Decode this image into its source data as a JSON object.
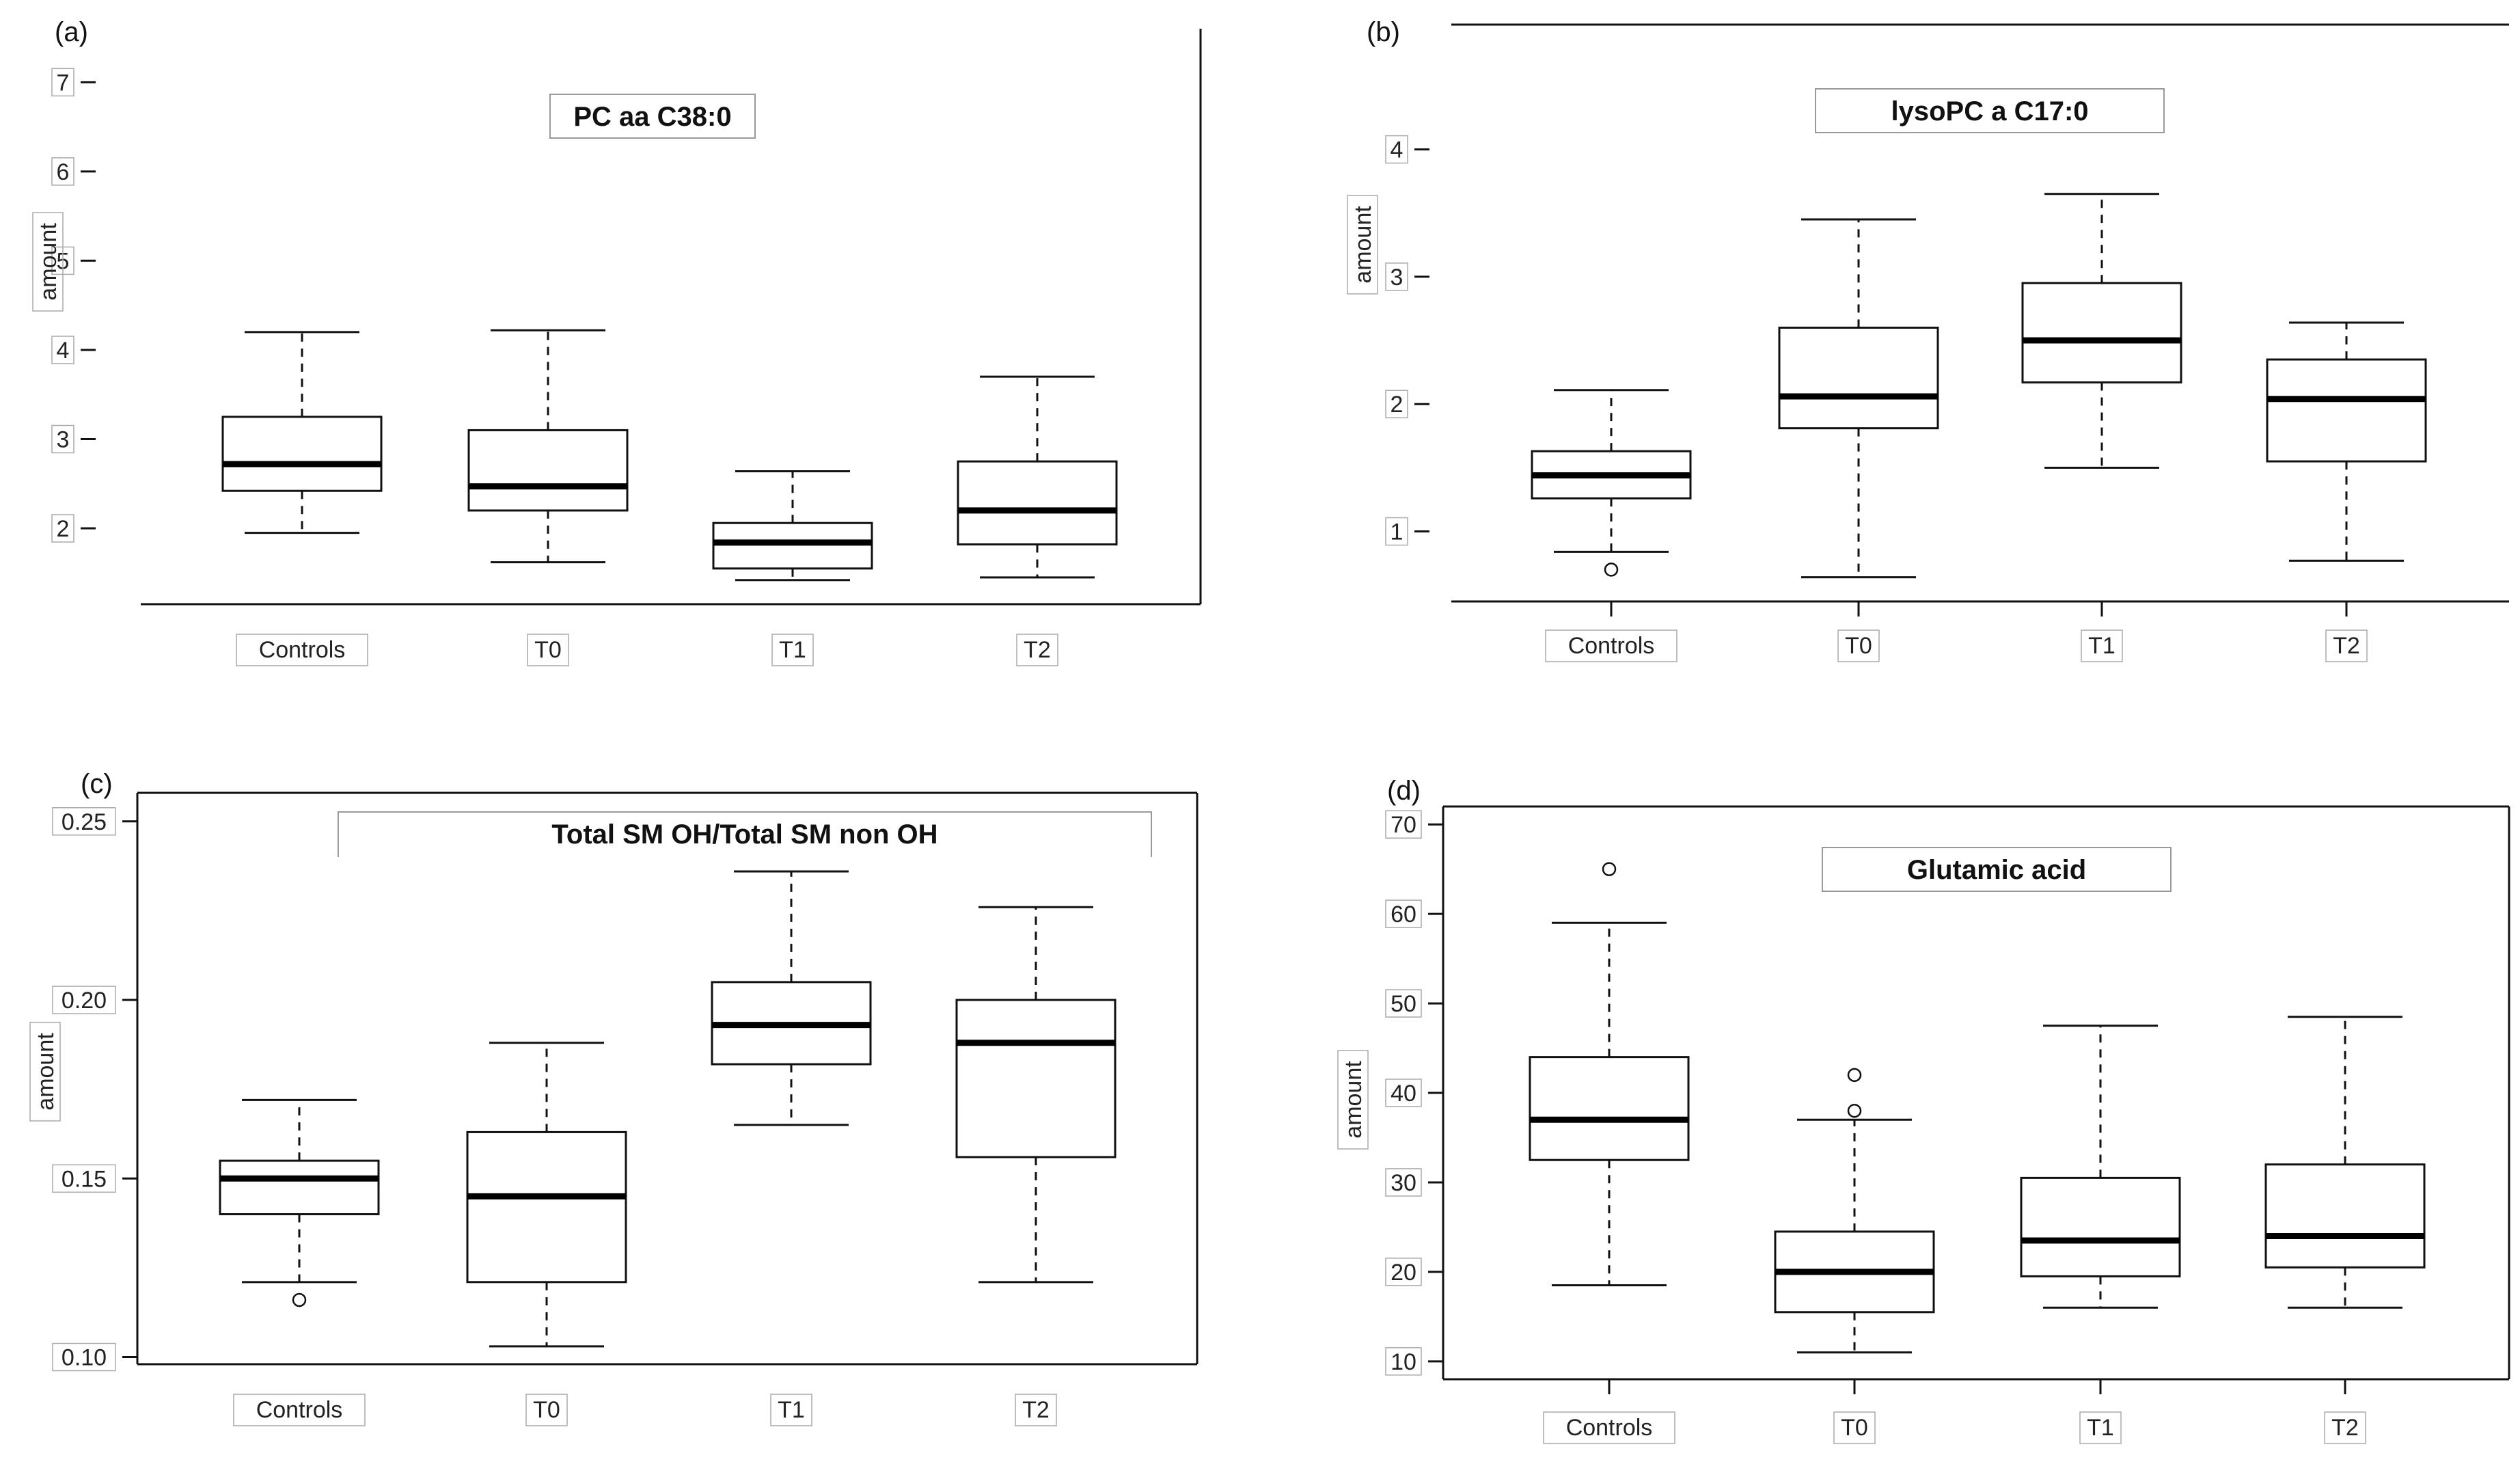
{
  "figure": {
    "panels": [
      "(a)",
      "(b)",
      "(c)",
      "(d)"
    ]
  },
  "chart_data": [
    {
      "panel": "(a)",
      "type": "boxplot",
      "title": "PC  aa  C38:0",
      "ylabel": "amount",
      "xlabel": "",
      "ylim": [
        1.15,
        7.6
      ],
      "yticks": [
        2,
        3,
        4,
        5,
        6,
        7
      ],
      "yticklabels": [
        "2",
        "3",
        "4",
        "5",
        "6",
        "7"
      ],
      "categories": [
        "Controls",
        "T0",
        "T1",
        "T2"
      ],
      "boxes": [
        {
          "group": "Controls",
          "whisker_low": 1.95,
          "q1": 2.42,
          "median": 2.72,
          "q3": 3.25,
          "whisker_high": 4.2,
          "outliers": []
        },
        {
          "group": "T0",
          "whisker_low": 1.62,
          "q1": 2.2,
          "median": 2.47,
          "q3": 3.1,
          "whisker_high": 4.22,
          "outliers": []
        },
        {
          "group": "T1",
          "whisker_low": 1.42,
          "q1": 1.55,
          "median": 1.84,
          "q3": 2.06,
          "whisker_high": 2.64,
          "outliers": []
        },
        {
          "group": "T2",
          "whisker_low": 1.45,
          "q1": 1.82,
          "median": 2.2,
          "q3": 2.75,
          "whisker_high": 3.7,
          "outliers": []
        }
      ]
    },
    {
      "panel": "(b)",
      "type": "boxplot",
      "title": "lysoPC  a  C17:0",
      "ylabel": "amount",
      "xlabel": "",
      "ylim": [
        0.45,
        4.98
      ],
      "yticks": [
        1,
        2,
        3,
        4
      ],
      "yticklabels": [
        "1",
        "2",
        "3",
        "4"
      ],
      "categories": [
        "Controls",
        "T0",
        "T1",
        "T2"
      ],
      "boxes": [
        {
          "group": "Controls",
          "whisker_low": 0.84,
          "q1": 1.26,
          "median": 1.44,
          "q3": 1.63,
          "whisker_high": 2.11,
          "outliers": [
            0.7
          ]
        },
        {
          "group": "T0",
          "whisker_low": 0.64,
          "q1": 1.81,
          "median": 2.06,
          "q3": 2.6,
          "whisker_high": 3.45,
          "outliers": []
        },
        {
          "group": "T1",
          "whisker_low": 1.5,
          "q1": 2.17,
          "median": 2.5,
          "q3": 2.95,
          "whisker_high": 3.65,
          "outliers": []
        },
        {
          "group": "T2",
          "whisker_low": 0.77,
          "q1": 1.55,
          "median": 2.04,
          "q3": 2.35,
          "whisker_high": 2.64,
          "outliers": []
        }
      ]
    },
    {
      "panel": "(c)",
      "type": "boxplot",
      "title": "Total  SM  OH/Total  SM  non  OH",
      "ylabel": "amount",
      "xlabel": "",
      "ylim": [
        0.098,
        0.258
      ],
      "yticks": [
        0.1,
        0.15,
        0.2,
        0.25
      ],
      "yticklabels": [
        "0.10",
        "0.15",
        "0.20",
        "0.25"
      ],
      "categories": [
        "Controls",
        "T0",
        "T1",
        "T2"
      ],
      "boxes": [
        {
          "group": "Controls",
          "whisker_low": 0.121,
          "q1": 0.14,
          "median": 0.15,
          "q3": 0.155,
          "whisker_high": 0.172,
          "outliers": [
            0.116
          ]
        },
        {
          "group": "T0",
          "whisker_low": 0.103,
          "q1": 0.121,
          "median": 0.145,
          "q3": 0.163,
          "whisker_high": 0.188,
          "outliers": []
        },
        {
          "group": "T1",
          "whisker_low": 0.165,
          "q1": 0.182,
          "median": 0.193,
          "q3": 0.205,
          "whisker_high": 0.236,
          "outliers": []
        },
        {
          "group": "T2",
          "whisker_low": 0.121,
          "q1": 0.156,
          "median": 0.188,
          "q3": 0.2,
          "whisker_high": 0.226,
          "outliers": []
        }
      ]
    },
    {
      "panel": "(d)",
      "type": "boxplot",
      "title": "Glutamic acid",
      "ylabel": "amount",
      "xlabel": "",
      "ylim": [
        8,
        72
      ],
      "yticks": [
        10,
        20,
        30,
        40,
        50,
        60,
        70
      ],
      "yticklabels": [
        "10",
        "20",
        "30",
        "40",
        "50",
        "60",
        "70"
      ],
      "categories": [
        "Controls",
        "T0",
        "T1",
        "T2"
      ],
      "boxes": [
        {
          "group": "Controls",
          "whisker_low": 18.5,
          "q1": 32.5,
          "median": 37,
          "q3": 44,
          "whisker_high": 59,
          "outliers": [
            65
          ]
        },
        {
          "group": "T0",
          "whisker_low": 11,
          "q1": 15.5,
          "median": 20,
          "q3": 24.5,
          "whisker_high": 37,
          "outliers": [
            38,
            42
          ]
        },
        {
          "group": "T1",
          "whisker_low": 16,
          "q1": 19.5,
          "median": 23.5,
          "q3": 30.5,
          "whisker_high": 47.5,
          "outliers": []
        },
        {
          "group": "T2",
          "whisker_low": 16,
          "q1": 20.5,
          "median": 24,
          "q3": 32,
          "whisker_high": 48.5,
          "outliers": []
        }
      ]
    }
  ]
}
